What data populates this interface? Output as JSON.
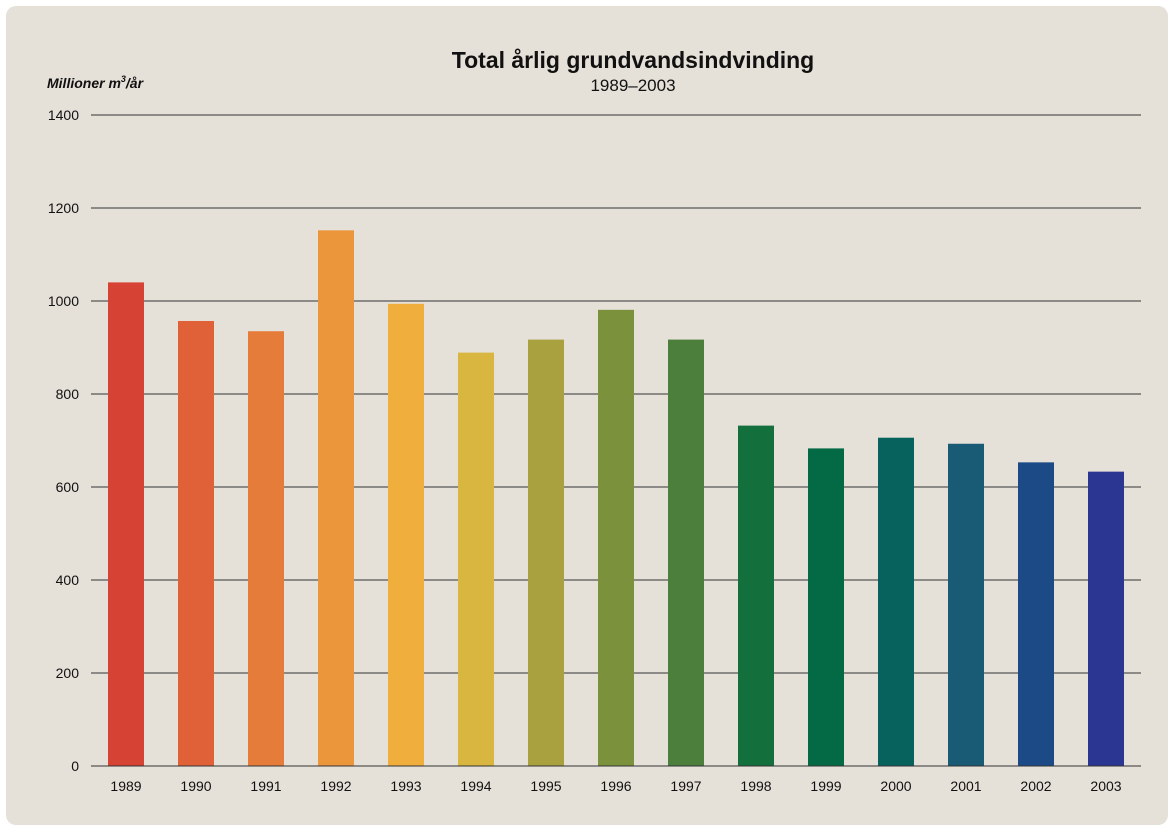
{
  "chart_data": {
    "type": "bar",
    "title": "Total årlig grundvandsindvinding",
    "subtitle": "1989–2003",
    "ylabel_main": "Millioner m",
    "ylabel_sup": "3",
    "ylabel_tail": "/år",
    "xlabel": "",
    "ylim": [
      0,
      1400
    ],
    "yticks": [
      0,
      200,
      400,
      600,
      800,
      1000,
      1200,
      1400
    ],
    "grid": true,
    "categories": [
      "1989",
      "1990",
      "1991",
      "1992",
      "1993",
      "1994",
      "1995",
      "1996",
      "1997",
      "1998",
      "1999",
      "2000",
      "2001",
      "2002",
      "2003"
    ],
    "values": [
      1040,
      957,
      935,
      1152,
      994,
      889,
      917,
      981,
      917,
      732,
      683,
      706,
      693,
      653,
      633
    ],
    "colors": [
      "#d64233",
      "#e06137",
      "#e57c3a",
      "#ec963c",
      "#f0ae3c",
      "#d9b63f",
      "#a9a13f",
      "#7b913c",
      "#4b7f3b",
      "#136f3c",
      "#046a46",
      "#07625d",
      "#195a74",
      "#1c4a86",
      "#2b3592"
    ]
  }
}
